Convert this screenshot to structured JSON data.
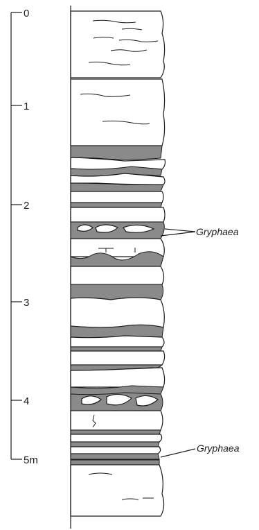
{
  "scale": {
    "ticks": [
      {
        "label": "0"
      },
      {
        "label": "1"
      },
      {
        "label": "2"
      },
      {
        "label": "3"
      },
      {
        "label": "4"
      },
      {
        "label": "5m"
      }
    ]
  },
  "annotations": [
    {
      "text": "Gryphaea"
    },
    {
      "text": "Gryphaea"
    }
  ],
  "colors": {
    "shale": "#8a8a8a",
    "limestone": "#ffffff",
    "line": "#1a1a1a"
  }
}
